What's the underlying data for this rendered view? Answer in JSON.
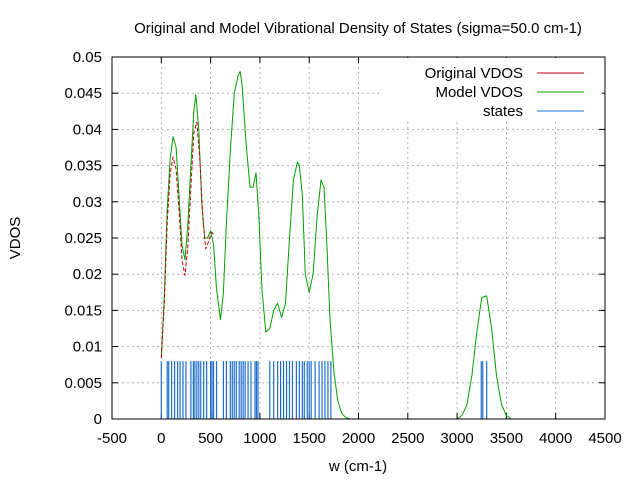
{
  "chart_data": {
    "type": "line",
    "title": "Original and Model Vibrational Density of States (sigma=50.0 cm-1)",
    "xlabel": "w (cm-1)",
    "ylabel": "VDOS",
    "xlim": [
      -500,
      4500
    ],
    "ylim": [
      0,
      0.05
    ],
    "xticks": [
      "-500",
      "0",
      "500",
      "1000",
      "1500",
      "2000",
      "2500",
      "3000",
      "3500",
      "4000",
      "4500"
    ],
    "yticks": [
      "0",
      "0.005",
      "0.01",
      "0.015",
      "0.02",
      "0.025",
      "0.03",
      "0.035",
      "0.04",
      "0.045",
      "0.05"
    ],
    "grid": true,
    "legend_position": "top-right",
    "series": [
      {
        "name": "Original VDOS",
        "color": "#c00000",
        "x": [
          0,
          30,
          60,
          90,
          120,
          150,
          180,
          210,
          240,
          270,
          300,
          330,
          360,
          390,
          420,
          450,
          480,
          510,
          530
        ],
        "y": [
          0.0085,
          0.016,
          0.027,
          0.034,
          0.0362,
          0.0345,
          0.029,
          0.022,
          0.0198,
          0.024,
          0.032,
          0.0395,
          0.041,
          0.036,
          0.028,
          0.0235,
          0.0245,
          0.0258,
          0.0255
        ]
      },
      {
        "name": "Model VDOS",
        "color": "#00a000",
        "x": [
          0,
          30,
          60,
          90,
          120,
          150,
          180,
          210,
          240,
          270,
          300,
          330,
          350,
          380,
          410,
          440,
          470,
          500,
          530,
          560,
          600,
          630,
          660,
          700,
          740,
          780,
          800,
          820,
          860,
          900,
          930,
          960,
          990,
          1020,
          1060,
          1100,
          1140,
          1180,
          1220,
          1260,
          1300,
          1340,
          1380,
          1400,
          1430,
          1460,
          1500,
          1540,
          1580,
          1620,
          1650,
          1680,
          1710,
          1750,
          1790,
          1830,
          1870,
          1920,
          1980,
          2050,
          2500,
          3000,
          3050,
          3100,
          3150,
          3200,
          3250,
          3300,
          3350,
          3400,
          3450,
          3500,
          3550
        ],
        "y": [
          0.0085,
          0.017,
          0.029,
          0.036,
          0.039,
          0.0375,
          0.031,
          0.024,
          0.022,
          0.027,
          0.035,
          0.0425,
          0.0448,
          0.04,
          0.03,
          0.025,
          0.025,
          0.026,
          0.024,
          0.018,
          0.0137,
          0.0175,
          0.027,
          0.037,
          0.045,
          0.0475,
          0.048,
          0.046,
          0.038,
          0.032,
          0.032,
          0.034,
          0.028,
          0.018,
          0.012,
          0.0125,
          0.015,
          0.016,
          0.014,
          0.016,
          0.025,
          0.033,
          0.0355,
          0.035,
          0.031,
          0.02,
          0.0175,
          0.02,
          0.028,
          0.033,
          0.032,
          0.024,
          0.014,
          0.0065,
          0.0025,
          0.0008,
          0.0002,
          0,
          0,
          0,
          0,
          0,
          0.0005,
          0.002,
          0.006,
          0.012,
          0.0168,
          0.017,
          0.0125,
          0.006,
          0.002,
          0.0005,
          0
        ]
      },
      {
        "name": "states",
        "color": "#1f6fd0",
        "height": 0.008,
        "positions": [
          0,
          60,
          75,
          105,
          135,
          165,
          190,
          220,
          250,
          300,
          325,
          340,
          360,
          380,
          400,
          430,
          460,
          500,
          515,
          530,
          560,
          630,
          660,
          700,
          720,
          740,
          760,
          790,
          810,
          830,
          850,
          880,
          910,
          950,
          965,
          980,
          1100,
          1140,
          1180,
          1210,
          1240,
          1270,
          1300,
          1330,
          1370,
          1400,
          1430,
          1450,
          1480,
          1500,
          1520,
          1560,
          1600,
          1630,
          1660,
          1690,
          1720,
          3245,
          3260,
          3300
        ]
      }
    ]
  }
}
